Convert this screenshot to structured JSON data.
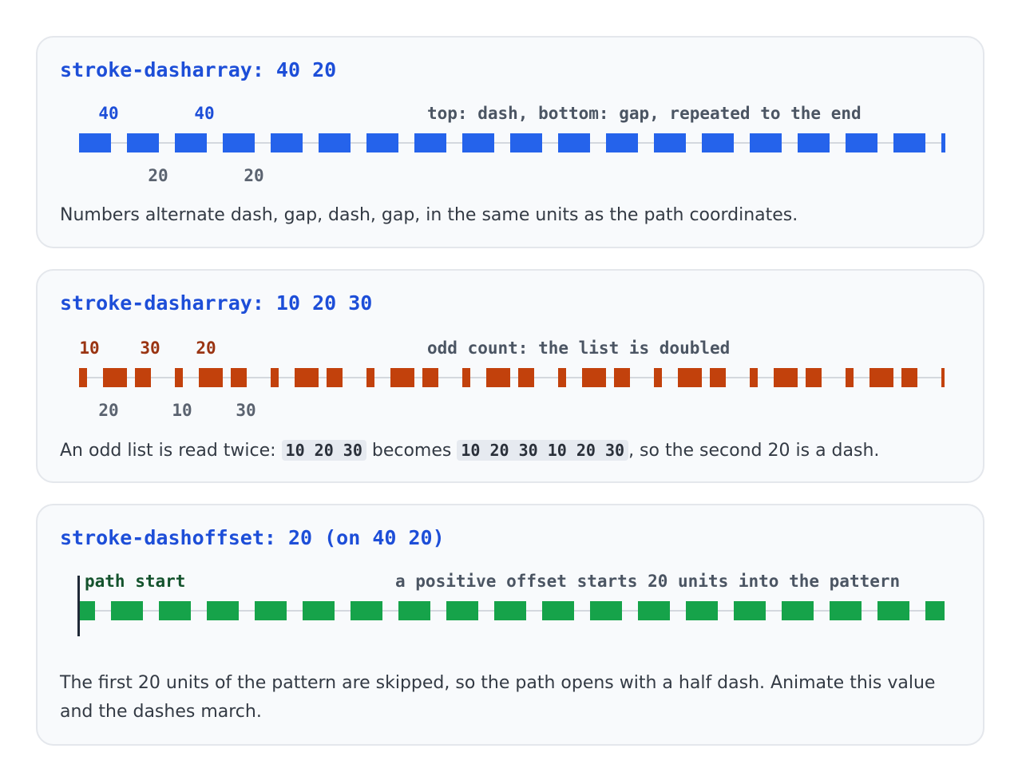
{
  "cards": [
    {
      "title": "stroke-dasharray: 40 20",
      "color": "#2563eb",
      "label_color": "#1d4ed8",
      "dasharray": [
        40,
        20
      ],
      "dashoffset": 0,
      "path_length": 1084,
      "end_marker": true,
      "top_labels": [
        "40",
        "40"
      ],
      "bottom_labels": [
        "20",
        "20"
      ],
      "note": "top: dash, bottom: gap, repeated to the end",
      "caption": "Numbers alternate dash, gap, dash, gap, in the same units as the path coordinates."
    },
    {
      "title": "stroke-dasharray: 10 20 30",
      "color": "#c2410c",
      "label_color": "#9a3412",
      "dasharray": [
        10,
        20,
        30
      ],
      "dashoffset": 0,
      "path_length": 1084,
      "end_marker": false,
      "top_labels": [
        "10",
        "30",
        "20"
      ],
      "bottom_labels": [
        "20",
        "10",
        "30"
      ],
      "note": "odd count: the list is doubled",
      "caption_parts": {
        "before": "An odd list is read twice: ",
        "code1": "10 20 30",
        "middle": " becomes ",
        "code2": "10 20 30 10 20 30",
        "after": ", so the second 20 is a dash."
      }
    },
    {
      "title": "stroke-dashoffset: 20 (on 40 20)",
      "color": "#16a34a",
      "label_color": "#14532d",
      "dasharray": [
        40,
        20
      ],
      "dashoffset": 20,
      "path_length": 1084,
      "end_marker": false,
      "start_label": "path start",
      "note": "a positive offset starts 20 units into the pattern",
      "caption": "The first 20 units of the pattern are skipped, so the path opens with a half dash. Animate this value and the dashes march."
    }
  ]
}
